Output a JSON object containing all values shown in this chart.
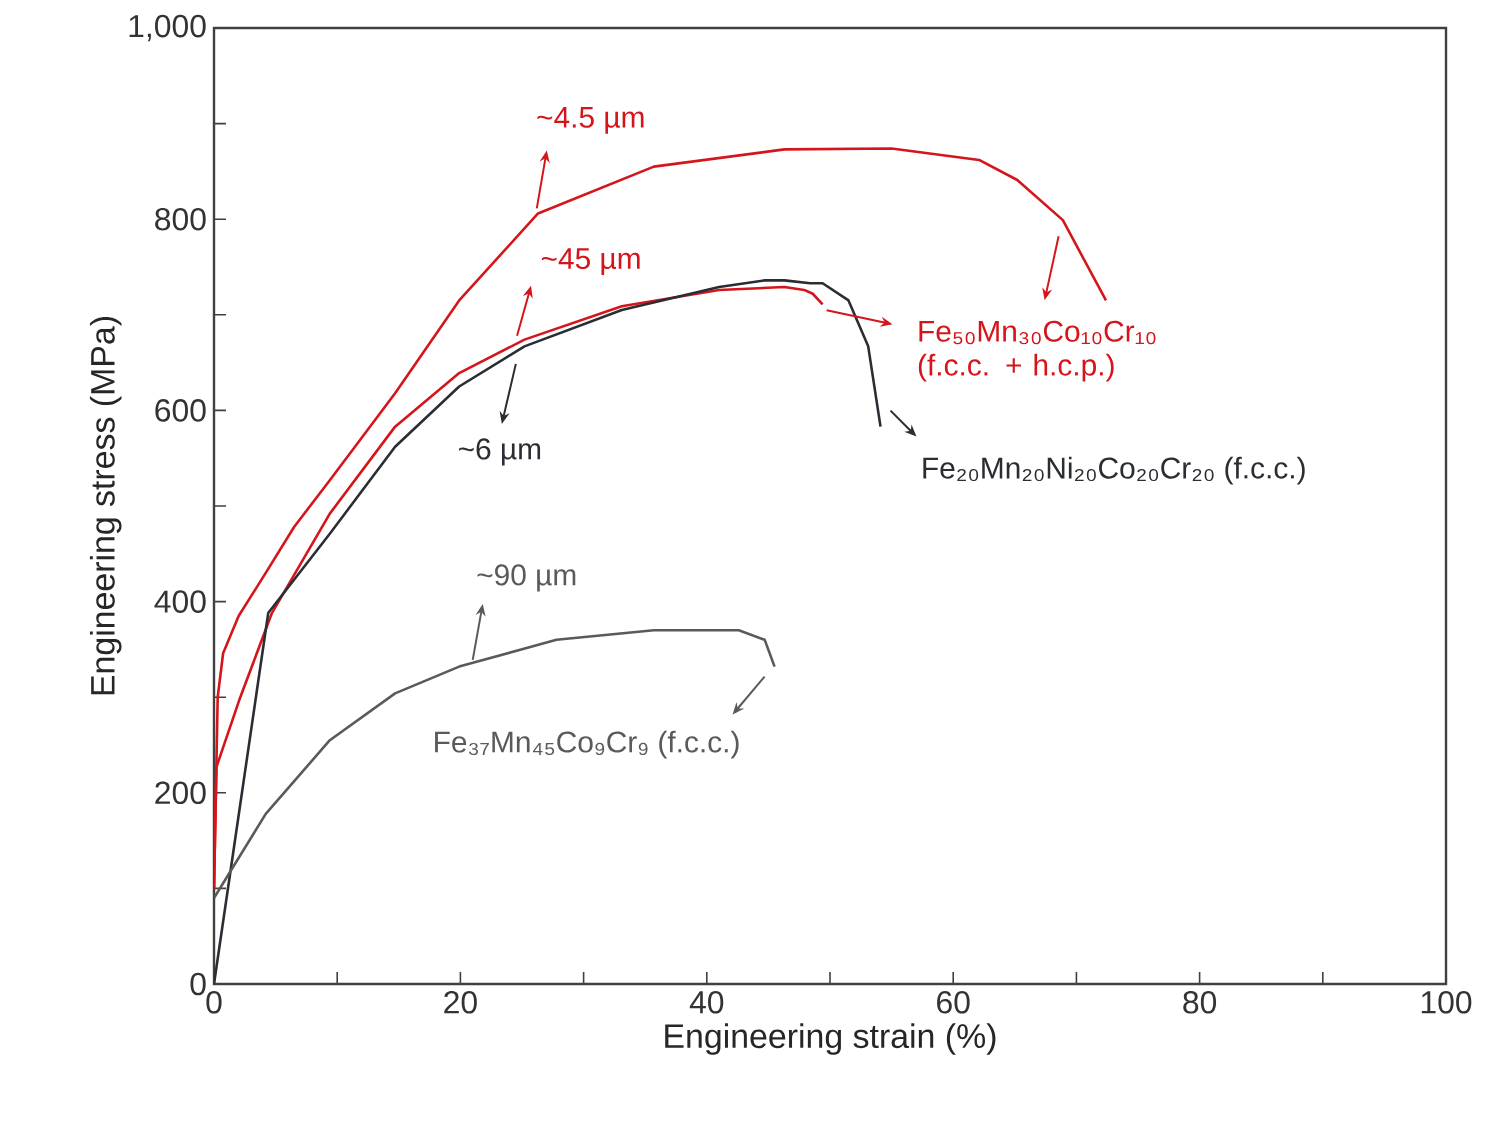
{
  "chart_data": {
    "type": "line",
    "xlabel": "Engineering strain (%)",
    "ylabel": "Engineering stress (MPa)",
    "xlim": [
      0,
      100
    ],
    "ylim": [
      0,
      1000
    ],
    "xticks": [
      0,
      {
        "value": 10,
        "label": null
      },
      20,
      {
        "value": 30,
        "label": null
      },
      40,
      {
        "value": 50,
        "label": null
      },
      60,
      {
        "value": 70,
        "label": null
      },
      80,
      {
        "value": 90,
        "label": null
      },
      100
    ],
    "yticks": [
      0,
      {
        "value": 100,
        "label": null
      },
      200,
      {
        "value": 300,
        "label": null
      },
      400,
      {
        "value": 500,
        "label": null
      },
      600,
      {
        "value": 700,
        "label": null
      },
      800,
      {
        "value": 900,
        "label": null
      },
      {
        "value": 1000,
        "label": "1,000"
      }
    ],
    "series": [
      {
        "color": "#d4161c",
        "x": [
          0,
          0.3,
          0.74,
          2,
          4.2,
          6.5,
          9.4,
          14.7,
          19.9,
          26.3,
          35.7,
          46.3,
          55,
          62.1,
          65.2,
          68.9,
          72.4
        ],
        "values": [
          100,
          300,
          346,
          385,
          430,
          478,
          527,
          618,
          715,
          806,
          855,
          873,
          874,
          862,
          841,
          799,
          715
        ]
      },
      {
        "color": "#d4161c",
        "x": [
          0,
          0.2,
          2.05,
          4.7,
          9.4,
          14.7,
          19.9,
          25.2,
          33.1,
          41,
          46.3,
          47.9,
          48.6,
          49.4
        ],
        "values": [
          100,
          227,
          297,
          388,
          492,
          583,
          639,
          674,
          709,
          726,
          729,
          726,
          722,
          711
        ]
      },
      {
        "color": "#2a2d33",
        "x": [
          0,
          4.4,
          9.4,
          14.7,
          19.9,
          25.2,
          33.1,
          41,
          44.7,
          46.3,
          48.4,
          49.4,
          51.5,
          53.1,
          54.1
        ],
        "values": [
          0,
          388,
          471,
          562,
          625,
          667,
          705,
          729,
          736,
          736,
          733,
          733,
          715,
          667,
          583
        ]
      },
      {
        "color": "#5a5a5a",
        "x": [
          0,
          4.2,
          9.4,
          14.7,
          19.9,
          27.8,
          35.7,
          42.6,
          44.7,
          45.5
        ],
        "values": [
          90,
          178,
          255,
          304,
          332,
          360,
          370,
          370,
          360,
          332
        ]
      }
    ],
    "annotations": [
      {
        "text": "~4.5 µm",
        "x": 26.2,
        "y": 805
      },
      {
        "text": "~45 µm",
        "x": 24.6,
        "y": 674
      },
      {
        "text": "~6 µm",
        "x": 24.5,
        "y": 657
      },
      {
        "text": "~90 µm",
        "x": 21,
        "y": 339
      },
      {
        "text": "Fe₅₀Mn₃₀Co₁₀Cr₁₀ (f.c.c. + h.c.p.)",
        "x": 49.4,
        "y": 711
      },
      {
        "text": "Fe₂₀Mn₂₀Ni₂₀Co₂₀Cr₂₀ (f.c.c.)",
        "x": 54.1,
        "y": 583
      },
      {
        "text": "Fe₃₇Mn₄₅Co₉Cr₉ (f.c.c.)",
        "x": 45.5,
        "y": 332
      }
    ]
  }
}
